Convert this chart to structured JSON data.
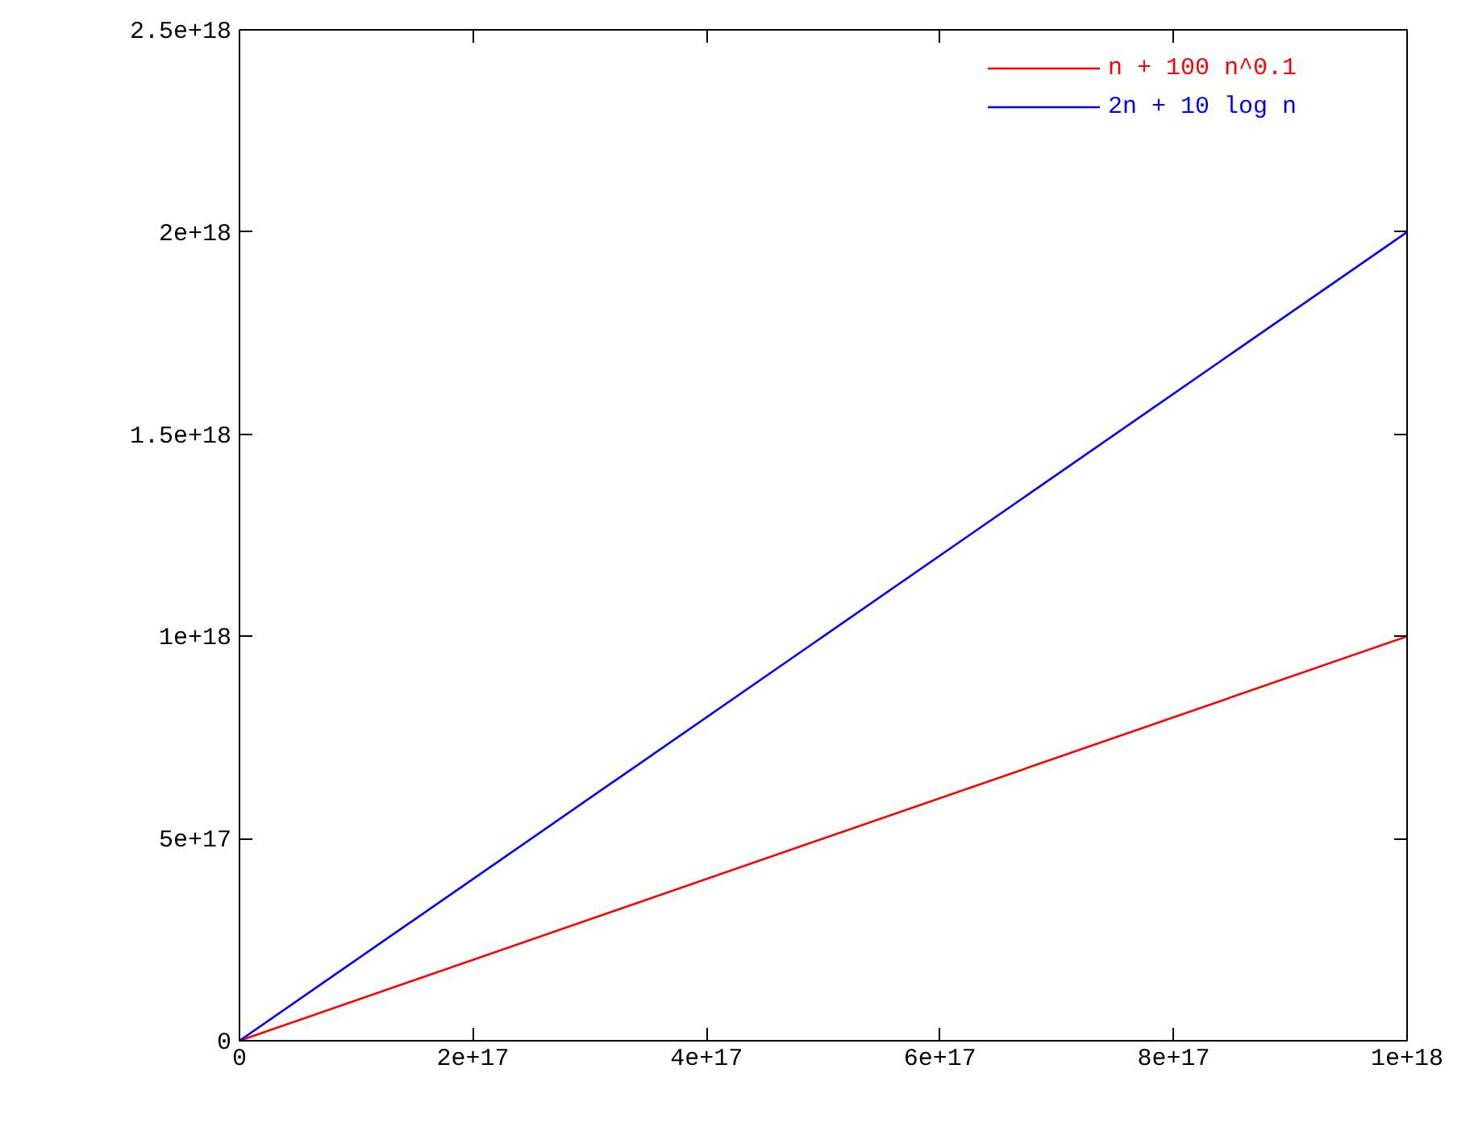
{
  "chart_data": {
    "type": "line",
    "xlim": [
      0,
      1e+18
    ],
    "ylim": [
      0,
      2.5e+18
    ],
    "xticks": [
      0,
      {
        "value": 2e+17,
        "label": "2e+17"
      },
      {
        "value": 4e+17,
        "label": "4e+17"
      },
      {
        "value": 6e+17,
        "label": "6e+17"
      },
      {
        "value": 8e+17,
        "label": "8e+17"
      },
      {
        "value": 1e+18,
        "label": "1e+18"
      }
    ],
    "yticks": [
      0,
      {
        "value": 5e+17,
        "label": "5e+17"
      },
      {
        "value": 1e+18,
        "label": "1e+18"
      },
      {
        "value": 1.5e+18,
        "label": "1.5e+18"
      },
      {
        "value": 2e+18,
        "label": "2e+18"
      },
      {
        "value": 2.5e+18,
        "label": "2.5e+18"
      }
    ],
    "x": [
      0,
      1e+18
    ],
    "series": [
      {
        "name": "n + 100 n^0.1",
        "color": "#ff0000",
        "values": [
          0,
          1e+18
        ]
      },
      {
        "name": "2n + 10 log n",
        "color": "#0000ff",
        "values": [
          0,
          2e+18
        ]
      }
    ],
    "legend": "top right",
    "grid": false,
    "marker": "none",
    "line_style": "solid"
  }
}
